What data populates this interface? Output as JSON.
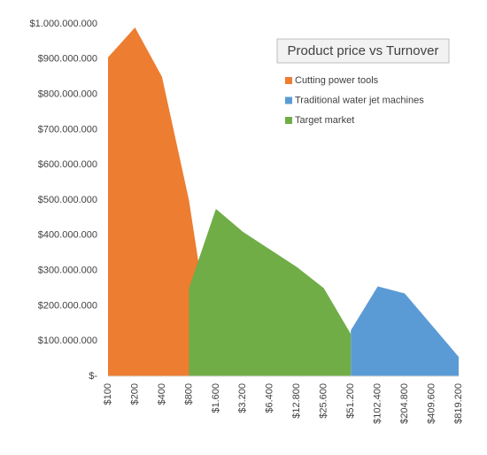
{
  "chart_data": {
    "type": "area",
    "title": "Product price vs Turnover",
    "categories": [
      "$100",
      "$200",
      "$400",
      "$800",
      "$1.600",
      "$3.200",
      "$6.400",
      "$12.800",
      "$25.600",
      "$51.200",
      "$102.400",
      "$204.800",
      "$409.600",
      "$819.200"
    ],
    "series": [
      {
        "name": "Cutting power tools",
        "color": "#ed7d31",
        "values": [
          905000000,
          990000000,
          850000000,
          500000000,
          0,
          null,
          null,
          null,
          null,
          null,
          null,
          null,
          null,
          null
        ]
      },
      {
        "name": "Traditional water jet machines",
        "color": "#5b9bd5",
        "values": [
          null,
          null,
          null,
          null,
          null,
          null,
          null,
          null,
          null,
          130000000,
          255000000,
          235000000,
          145000000,
          55000000
        ]
      },
      {
        "name": "Target market",
        "color": "#70ad47",
        "values": [
          null,
          null,
          null,
          250000000,
          475000000,
          410000000,
          360000000,
          310000000,
          250000000,
          120000000,
          null,
          null,
          null,
          null
        ]
      }
    ],
    "ylim": [
      0,
      1000000000
    ],
    "yticks": [
      {
        "value": 0,
        "label": "$-"
      },
      {
        "value": 100000000,
        "label": "$100.000.000"
      },
      {
        "value": 200000000,
        "label": "$200.000.000"
      },
      {
        "value": 300000000,
        "label": "$300.000.000"
      },
      {
        "value": 400000000,
        "label": "$400.000.000"
      },
      {
        "value": 500000000,
        "label": "$500.000.000"
      },
      {
        "value": 600000000,
        "label": "$600.000.000"
      },
      {
        "value": 700000000,
        "label": "$700.000.000"
      },
      {
        "value": 800000000,
        "label": "$800.000.000"
      },
      {
        "value": 900000000,
        "label": "$900.000.000"
      },
      {
        "value": 1000000000,
        "label": "$1.000.000.000"
      }
    ],
    "grid": false
  }
}
